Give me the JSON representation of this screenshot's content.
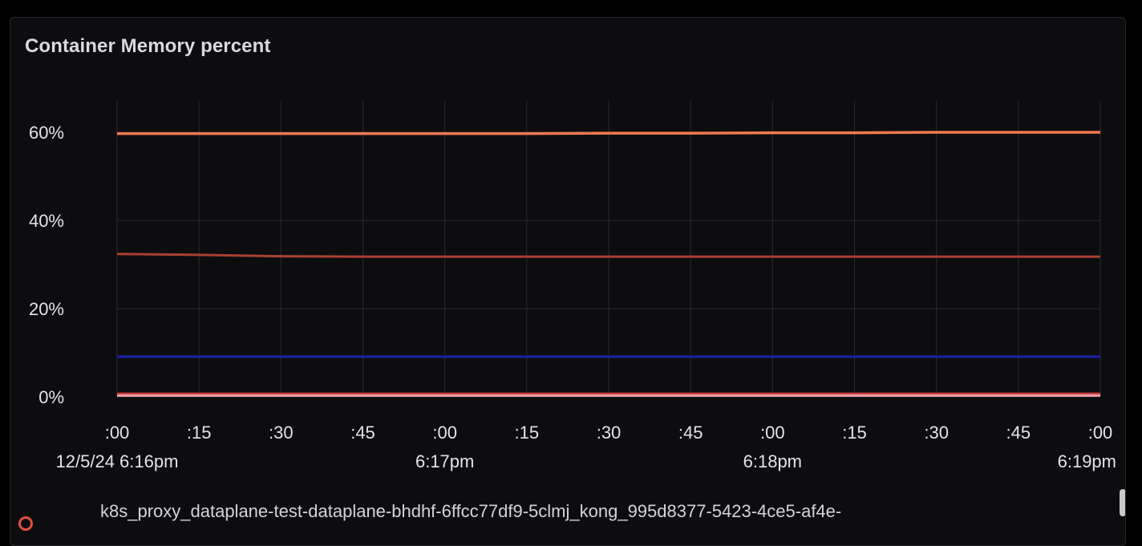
{
  "panel": {
    "title": "Container Memory percent"
  },
  "legend": {
    "label": "k8s_proxy_dataplane-test-dataplane-bhdhf-6ffcc77df9-5clmj_kong_995d8377-5423-4ce5-af4e-",
    "swatch_color": "#e0523c"
  },
  "chart_data": {
    "type": "line",
    "title": "Container Memory percent",
    "xlabel": "",
    "ylabel": "",
    "ylim": [
      0,
      60
    ],
    "yticks": [
      {
        "value": 0,
        "label": "0%"
      },
      {
        "value": 20,
        "label": "20%"
      },
      {
        "value": 40,
        "label": "40%"
      },
      {
        "value": 60,
        "label": "60%"
      }
    ],
    "x_tick_labels": [
      ":00",
      ":15",
      ":30",
      ":45",
      ":00",
      ":15",
      ":30",
      ":45",
      ":00",
      ":15",
      ":30",
      ":45",
      ":00"
    ],
    "x_group_labels": [
      {
        "index": 0,
        "label": "12/5/24 6:16pm"
      },
      {
        "index": 4,
        "label": "6:17pm"
      },
      {
        "index": 8,
        "label": "6:18pm"
      },
      {
        "index": 12,
        "label": "6:19pm"
      }
    ],
    "grid": true,
    "series": [
      {
        "color": "#f07a4f",
        "values": [
          59.7,
          59.7,
          59.7,
          59.7,
          59.7,
          59.7,
          59.8,
          59.8,
          59.9,
          59.9,
          60.0,
          60.0,
          60.0
        ]
      },
      {
        "color": "#a8412f",
        "values": [
          32.4,
          32.2,
          31.9,
          31.8,
          31.8,
          31.8,
          31.8,
          31.8,
          31.8,
          31.8,
          31.8,
          31.8,
          31.8
        ]
      },
      {
        "color": "#1a23a8",
        "values": [
          9.1,
          9.1,
          9.1,
          9.1,
          9.1,
          9.1,
          9.1,
          9.1,
          9.1,
          9.1,
          9.1,
          9.1,
          9.1
        ]
      },
      {
        "color": "#c93a3a",
        "values": [
          0.7,
          0.7,
          0.7,
          0.7,
          0.7,
          0.7,
          0.7,
          0.7,
          0.7,
          0.7,
          0.7,
          0.7,
          0.7
        ]
      },
      {
        "color": "#f2a0a6",
        "values": [
          0.3,
          0.3,
          0.3,
          0.3,
          0.3,
          0.3,
          0.3,
          0.3,
          0.3,
          0.3,
          0.3,
          0.3,
          0.3
        ]
      }
    ]
  }
}
